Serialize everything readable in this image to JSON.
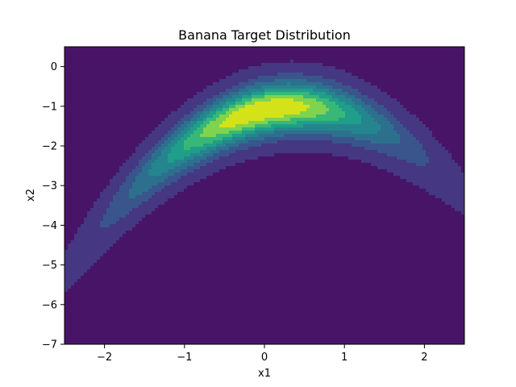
{
  "chart_data": {
    "type": "contour",
    "title": "Banana Target Distribution",
    "xlabel": "x1",
    "ylabel": "x2",
    "xlim": [
      -2.5,
      2.5
    ],
    "ylim": [
      -7,
      0.5
    ],
    "xticks": [
      -2,
      -1,
      0,
      1,
      2
    ],
    "xtick_labels": [
      "−2",
      "−1",
      "0",
      "1",
      "2"
    ],
    "yticks": [
      0,
      -1,
      -2,
      -3,
      -4,
      -5,
      -6,
      -7
    ],
    "ytick_labels": [
      "0",
      "−1",
      "−2",
      "−3",
      "−4",
      "−5",
      "−6",
      "−7"
    ],
    "grid": false,
    "legend": "none",
    "colormap": "viridis",
    "density": {
      "form": "banana",
      "ridge_a": 0.5,
      "ridge_b": 1.35,
      "ridge_offset": 0.26,
      "mode": [
        0,
        -1.1
      ],
      "sigma_x1": 1.05,
      "sigma_perp": 0.44
    },
    "levels": [
      0.03,
      0.15,
      0.27,
      0.39,
      0.51,
      0.63,
      0.75,
      0.87
    ],
    "colors": [
      "#481467",
      "#453781",
      "#39558c",
      "#2d708e",
      "#25858e",
      "#1f9e89",
      "#37b878",
      "#80d34e",
      "#d4e21a"
    ]
  }
}
